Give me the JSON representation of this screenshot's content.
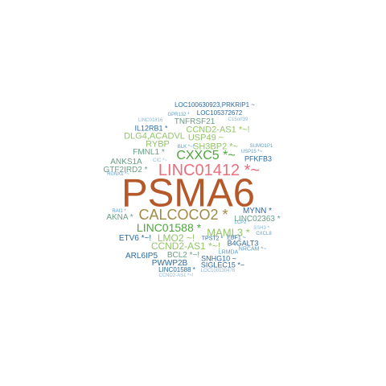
{
  "colors": {
    "dark_orange": "#b5582a",
    "salmon": "#e8707c",
    "olive": "#a08a46",
    "green": "#4ea73b",
    "light_green": "#93c46a",
    "teal": "#6a9e86",
    "dark_blue": "#2c6aa0",
    "light_blue": "#5aa0cc",
    "pale_blue": "#8cb8d8"
  },
  "words": [
    {
      "text": "PSMA6",
      "color": "dark_orange"
    },
    {
      "text": "LINC01412 *~",
      "color": "salmon"
    },
    {
      "text": "CALCOCO2 *",
      "color": "olive"
    },
    {
      "text": "CXXC5 *~",
      "color": "green"
    },
    {
      "text": "LINC01588 *",
      "color": "green"
    },
    {
      "text": "MAML3 *",
      "color": "light_green"
    },
    {
      "text": "LMO2 ~!",
      "color": "light_green"
    },
    {
      "text": "CCND2-AS1 *~!",
      "color": "light_green"
    },
    {
      "text": "SH3BP2 *~",
      "color": "light_green"
    },
    {
      "text": "CCND2-AS1 *~!",
      "color": "light_green"
    },
    {
      "text": "USP49 ~",
      "color": "light_green"
    },
    {
      "text": "DLG4,ACADVL",
      "color": "light_green"
    },
    {
      "text": "RYBP",
      "color": "light_green"
    },
    {
      "text": "TNFRSF21",
      "color": "teal"
    },
    {
      "text": "IL12RB1 *",
      "color": "dark_blue"
    },
    {
      "text": "FMNL1 *",
      "color": "teal"
    },
    {
      "text": "ANKS1A",
      "color": "teal"
    },
    {
      "text": "GTF2IRD2 *",
      "color": "teal"
    },
    {
      "text": "AKNA *",
      "color": "teal"
    },
    {
      "text": "MYNN *",
      "color": "dark_blue"
    },
    {
      "text": "LINC02363 *",
      "color": "teal"
    },
    {
      "text": "ETV6 *~!",
      "color": "dark_blue"
    },
    {
      "text": "BCL2 *~!",
      "color": "teal"
    },
    {
      "text": "ARL6IP5",
      "color": "dark_blue"
    },
    {
      "text": "PWWP2B",
      "color": "dark_blue"
    },
    {
      "text": "SNHG10 ~",
      "color": "dark_blue"
    },
    {
      "text": "SIGLEC15 *~",
      "color": "dark_blue"
    },
    {
      "text": "LINC01588 *",
      "color": "dark_blue"
    },
    {
      "text": "CCND2-AS1 *~!",
      "color": "pale_blue"
    },
    {
      "text": "LOC100130476",
      "color": "pale_blue"
    },
    {
      "text": "B4GALT3",
      "color": "dark_blue"
    },
    {
      "text": "LRMDA",
      "color": "light_blue"
    },
    {
      "text": "NRCAM *~",
      "color": "light_blue"
    },
    {
      "text": "TPST2 *",
      "color": "dark_blue"
    },
    {
      "text": "EBF1 ~",
      "color": "dark_blue"
    },
    {
      "text": "LCP2 *",
      "color": "light_blue"
    },
    {
      "text": "SSH3 *",
      "color": "pale_blue"
    },
    {
      "text": "CXCL8",
      "color": "light_blue"
    },
    {
      "text": "RAI1 *",
      "color": "light_blue"
    },
    {
      "text": "RUNX1 *~",
      "color": "light_blue"
    },
    {
      "text": "CIC *~",
      "color": "pale_blue"
    },
    {
      "text": "BLK *~!",
      "color": "light_blue"
    },
    {
      "text": "PFKFB3",
      "color": "dark_blue"
    },
    {
      "text": "USP15 *~",
      "color": "light_blue"
    },
    {
      "text": "SUMO1P1",
      "color": "light_blue"
    },
    {
      "text": "C15orf39",
      "color": "pale_blue"
    },
    {
      "text": "LINC01816",
      "color": "pale_blue"
    },
    {
      "text": "GPR132 *",
      "color": "light_blue"
    },
    {
      "text": "LOC105372672",
      "color": "dark_blue"
    },
    {
      "text": "LOC100630923,PRKRIP1 ~",
      "color": "dark_blue"
    }
  ]
}
